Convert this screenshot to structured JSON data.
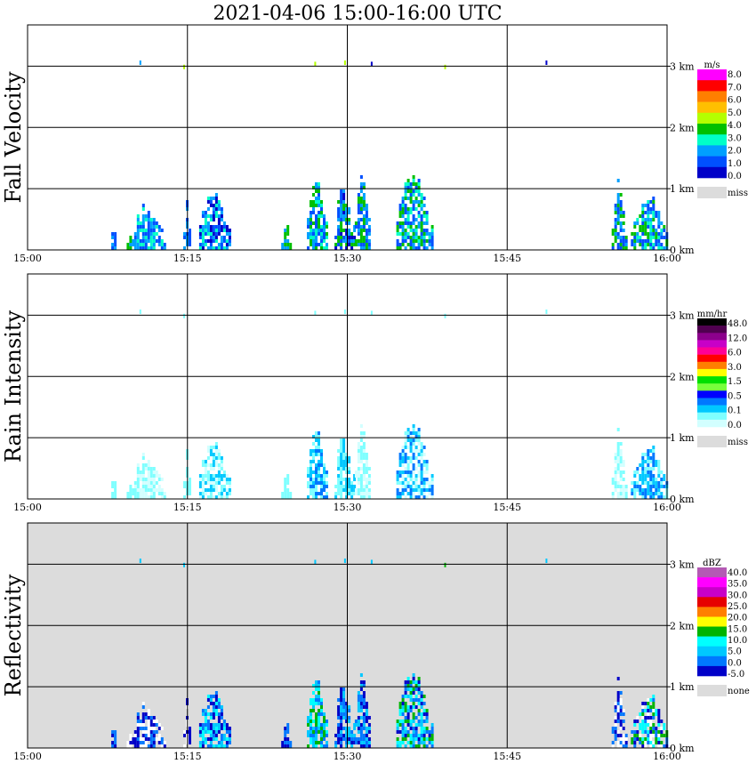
{
  "title": "2021-04-06   15:00-16:00 UTC",
  "chart_data": [
    {
      "type": "heatmap",
      "ylabel": "Fall Velocity",
      "xlim": [
        "15:00",
        "16:00"
      ],
      "x_ticks": [
        "15:00",
        "15:15",
        "15:30",
        "15:45",
        "16:00"
      ],
      "ylim_km": [
        0,
        3.5
      ],
      "y_ticks": [
        "0 km",
        "1 km",
        "2 km",
        "3 km"
      ],
      "background": "#ffffff",
      "legend": {
        "unit": "m/s",
        "position": "right",
        "labels": [
          "8.0",
          "7.0",
          "6.0",
          "5.0",
          "4.0",
          "3.0",
          "2.0",
          "1.0",
          "0.0"
        ],
        "colors": [
          "#ff00ff",
          "#ff0000",
          "#ff7f00",
          "#ffbf00",
          "#b4ff00",
          "#00c000",
          "#00ffc8",
          "#00a0ff",
          "#0050ff",
          "#0000c8"
        ],
        "missing_label": "miss",
        "missing_color": "#dcdcdc"
      },
      "echo_clusters": [
        {
          "start_min": 7.6,
          "end_min": 8.4,
          "top_km": 0.5,
          "colors": [
            "#00a0ff",
            "#0050ff"
          ]
        },
        {
          "start_min": 9.3,
          "end_min": 10.0,
          "top_km": 0.55,
          "colors": [
            "#00a0ff",
            "#00c000"
          ]
        },
        {
          "start_min": 10.0,
          "end_min": 12.8,
          "top_km": 0.92,
          "colors": [
            "#00a0ff",
            "#00ffc8",
            "#0050ff"
          ]
        },
        {
          "start_min": 14.6,
          "end_min": 15.2,
          "top_km": 0.95,
          "colors": [
            "#0050ff",
            "#00a0ff"
          ]
        },
        {
          "start_min": 16.1,
          "end_min": 18.9,
          "top_km": 1.1,
          "colors": [
            "#00a0ff",
            "#0050ff",
            "#0000c8",
            "#00ffc8"
          ]
        },
        {
          "start_min": 23.8,
          "end_min": 24.8,
          "top_km": 0.6,
          "colors": [
            "#00a0ff",
            "#00c000"
          ]
        },
        {
          "start_min": 26.2,
          "end_min": 28.0,
          "top_km": 1.38,
          "colors": [
            "#00a0ff",
            "#00c000",
            "#0050ff",
            "#00ffc8"
          ]
        },
        {
          "start_min": 28.8,
          "end_min": 30.6,
          "top_km": 1.1,
          "colors": [
            "#0050ff",
            "#00c000",
            "#00a0ff",
            "#0000c8"
          ]
        },
        {
          "start_min": 30.7,
          "end_min": 32.2,
          "top_km": 1.28,
          "colors": [
            "#00a0ff",
            "#00c000",
            "#0050ff"
          ]
        },
        {
          "start_min": 34.6,
          "end_min": 38.0,
          "top_km": 1.38,
          "colors": [
            "#00ffc8",
            "#00a0ff",
            "#00c000",
            "#0050ff"
          ]
        },
        {
          "start_min": 54.8,
          "end_min": 56.1,
          "top_km": 1.2,
          "colors": [
            "#00a0ff",
            "#00c000",
            "#0050ff"
          ]
        },
        {
          "start_min": 56.6,
          "end_min": 60.0,
          "top_km": 1.0,
          "colors": [
            "#00a0ff",
            "#00c000",
            "#0050ff",
            "#00ffc8"
          ]
        }
      ],
      "top_specks": [
        {
          "min": 10.5,
          "km": 3.05,
          "color": "#00a0ff"
        },
        {
          "min": 14.6,
          "km": 2.98,
          "color": "#b4ff00"
        },
        {
          "min": 26.9,
          "km": 3.03,
          "color": "#b4ff00"
        },
        {
          "min": 29.7,
          "km": 3.05,
          "color": "#b4ff00"
        },
        {
          "min": 32.2,
          "km": 3.03,
          "color": "#0000c8"
        },
        {
          "min": 39.1,
          "km": 2.98,
          "color": "#b4ff00"
        },
        {
          "min": 48.6,
          "km": 3.05,
          "color": "#0000c8"
        }
      ]
    },
    {
      "type": "heatmap",
      "ylabel": "Rain Intensity",
      "xlim": [
        "15:00",
        "16:00"
      ],
      "x_ticks": [
        "15:00",
        "15:15",
        "15:30",
        "15:45",
        "16:00"
      ],
      "ylim_km": [
        0,
        3.5
      ],
      "y_ticks": [
        "0 km",
        "1 km",
        "2 km",
        "3 km"
      ],
      "background": "#ffffff",
      "legend": {
        "unit": "mm/hr",
        "position": "right",
        "labels": [
          "48.0",
          "12.0",
          "6.0",
          "3.0",
          "1.5",
          "0.5",
          "0.1",
          "0.0"
        ],
        "colors": [
          "#000000",
          "#500050",
          "#8c008c",
          "#c800c8",
          "#ff0096",
          "#ff0000",
          "#ff7f00",
          "#ffff00",
          "#00e000",
          "#78ff3c",
          "#0000ff",
          "#0078ff",
          "#00c8ff",
          "#7fffff",
          "#d2ffff"
        ],
        "missing_label": "miss",
        "missing_color": "#dcdcdc"
      },
      "echo_clusters": [
        {
          "start_min": 7.6,
          "end_min": 8.4,
          "top_km": 0.5,
          "colors": [
            "#7fffff"
          ]
        },
        {
          "start_min": 9.3,
          "end_min": 10.0,
          "top_km": 0.55,
          "colors": [
            "#7fffff"
          ]
        },
        {
          "start_min": 10.0,
          "end_min": 12.8,
          "top_km": 0.92,
          "colors": [
            "#7fffff",
            "#d2ffff"
          ]
        },
        {
          "start_min": 14.6,
          "end_min": 15.2,
          "top_km": 0.95,
          "colors": [
            "#7fffff"
          ]
        },
        {
          "start_min": 16.1,
          "end_min": 18.9,
          "top_km": 1.1,
          "colors": [
            "#7fffff",
            "#00c8ff",
            "#d2ffff"
          ]
        },
        {
          "start_min": 23.8,
          "end_min": 24.8,
          "top_km": 0.6,
          "colors": [
            "#7fffff"
          ]
        },
        {
          "start_min": 26.2,
          "end_min": 28.0,
          "top_km": 1.38,
          "colors": [
            "#7fffff",
            "#00c8ff",
            "#0078ff"
          ]
        },
        {
          "start_min": 28.8,
          "end_min": 30.6,
          "top_km": 1.1,
          "colors": [
            "#7fffff",
            "#00c8ff"
          ]
        },
        {
          "start_min": 30.7,
          "end_min": 32.2,
          "top_km": 1.28,
          "colors": [
            "#7fffff",
            "#d2ffff"
          ]
        },
        {
          "start_min": 34.6,
          "end_min": 38.0,
          "top_km": 1.38,
          "colors": [
            "#7fffff",
            "#d2ffff",
            "#00c8ff",
            "#0078ff"
          ]
        },
        {
          "start_min": 54.8,
          "end_min": 56.1,
          "top_km": 1.2,
          "colors": [
            "#7fffff",
            "#d2ffff"
          ]
        },
        {
          "start_min": 56.6,
          "end_min": 60.0,
          "top_km": 1.0,
          "colors": [
            "#7fffff",
            "#00c8ff",
            "#0078ff"
          ]
        }
      ],
      "top_specks": [
        {
          "min": 10.5,
          "km": 3.05,
          "color": "#7fffff"
        },
        {
          "min": 14.6,
          "km": 2.98,
          "color": "#7fffff"
        },
        {
          "min": 26.9,
          "km": 3.03,
          "color": "#7fffff"
        },
        {
          "min": 29.7,
          "km": 3.05,
          "color": "#7fffff"
        },
        {
          "min": 32.2,
          "km": 3.03,
          "color": "#7fffff"
        },
        {
          "min": 39.1,
          "km": 2.98,
          "color": "#7fffff"
        },
        {
          "min": 48.6,
          "km": 3.05,
          "color": "#7fffff"
        }
      ]
    },
    {
      "type": "heatmap",
      "ylabel": "Reflectivity",
      "xlim": [
        "15:00",
        "16:00"
      ],
      "x_ticks": [
        "15:00",
        "15:15",
        "15:30",
        "15:45",
        "16:00"
      ],
      "ylim_km": [
        0,
        3.5
      ],
      "y_ticks": [
        "0 km",
        "1 km",
        "2 km",
        "3 km"
      ],
      "background": "#dcdcdc",
      "legend": {
        "unit": "dBZ",
        "position": "right",
        "labels": [
          "40.0",
          "35.0",
          "30.0",
          "25.0",
          "20.0",
          "15.0",
          "10.0",
          "5.0",
          "0.0",
          "-5.0"
        ],
        "colors": [
          "#b45ab4",
          "#ff00ff",
          "#c800c8",
          "#e60000",
          "#ff7f00",
          "#ffff00",
          "#00b400",
          "#00ffff",
          "#00c8ff",
          "#0078ff",
          "#0000c8"
        ],
        "missing_label": "none",
        "missing_color": "#dcdcdc"
      },
      "echo_clusters": [
        {
          "start_min": 7.6,
          "end_min": 8.4,
          "top_km": 0.5,
          "colors": [
            "#0000c8",
            "#0078ff"
          ]
        },
        {
          "start_min": 9.3,
          "end_min": 10.0,
          "top_km": 0.55,
          "colors": [
            "#0000c8",
            "#ffffff"
          ]
        },
        {
          "start_min": 10.0,
          "end_min": 12.8,
          "top_km": 0.92,
          "colors": [
            "#0000c8",
            "#0078ff",
            "#ffffff"
          ]
        },
        {
          "start_min": 14.6,
          "end_min": 15.2,
          "top_km": 0.95,
          "colors": [
            "#0000c8",
            "#ffffff"
          ]
        },
        {
          "start_min": 16.1,
          "end_min": 18.9,
          "top_km": 1.1,
          "colors": [
            "#0078ff",
            "#00c8ff",
            "#0000c8",
            "#00ffff"
          ]
        },
        {
          "start_min": 23.8,
          "end_min": 24.8,
          "top_km": 0.6,
          "colors": [
            "#0000c8",
            "#0078ff"
          ]
        },
        {
          "start_min": 26.2,
          "end_min": 28.0,
          "top_km": 1.38,
          "colors": [
            "#00c8ff",
            "#00ffff",
            "#00b400",
            "#0078ff"
          ]
        },
        {
          "start_min": 28.8,
          "end_min": 30.6,
          "top_km": 1.1,
          "colors": [
            "#0000c8",
            "#0078ff",
            "#00c8ff"
          ]
        },
        {
          "start_min": 30.7,
          "end_min": 32.2,
          "top_km": 1.28,
          "colors": [
            "#0000c8",
            "#0078ff",
            "#00c8ff"
          ]
        },
        {
          "start_min": 34.6,
          "end_min": 38.0,
          "top_km": 1.38,
          "colors": [
            "#0000c8",
            "#0078ff",
            "#00c8ff",
            "#00ffff",
            "#00b400"
          ]
        },
        {
          "start_min": 54.8,
          "end_min": 56.1,
          "top_km": 1.2,
          "colors": [
            "#0000c8",
            "#0078ff",
            "#ffffff"
          ]
        },
        {
          "start_min": 56.6,
          "end_min": 60.0,
          "top_km": 1.0,
          "colors": [
            "#0000c8",
            "#0078ff",
            "#00ffff",
            "#00b400",
            "#ffffff"
          ]
        }
      ],
      "top_specks": [
        {
          "min": 10.5,
          "km": 3.05,
          "color": "#00c8ff"
        },
        {
          "min": 14.6,
          "km": 2.98,
          "color": "#00c8ff"
        },
        {
          "min": 26.9,
          "km": 3.03,
          "color": "#00c8ff"
        },
        {
          "min": 29.7,
          "km": 3.05,
          "color": "#00c8ff"
        },
        {
          "min": 32.2,
          "km": 3.03,
          "color": "#00c8ff"
        },
        {
          "min": 39.1,
          "km": 2.98,
          "color": "#00b400"
        },
        {
          "min": 48.6,
          "km": 3.05,
          "color": "#00c8ff"
        }
      ]
    }
  ]
}
